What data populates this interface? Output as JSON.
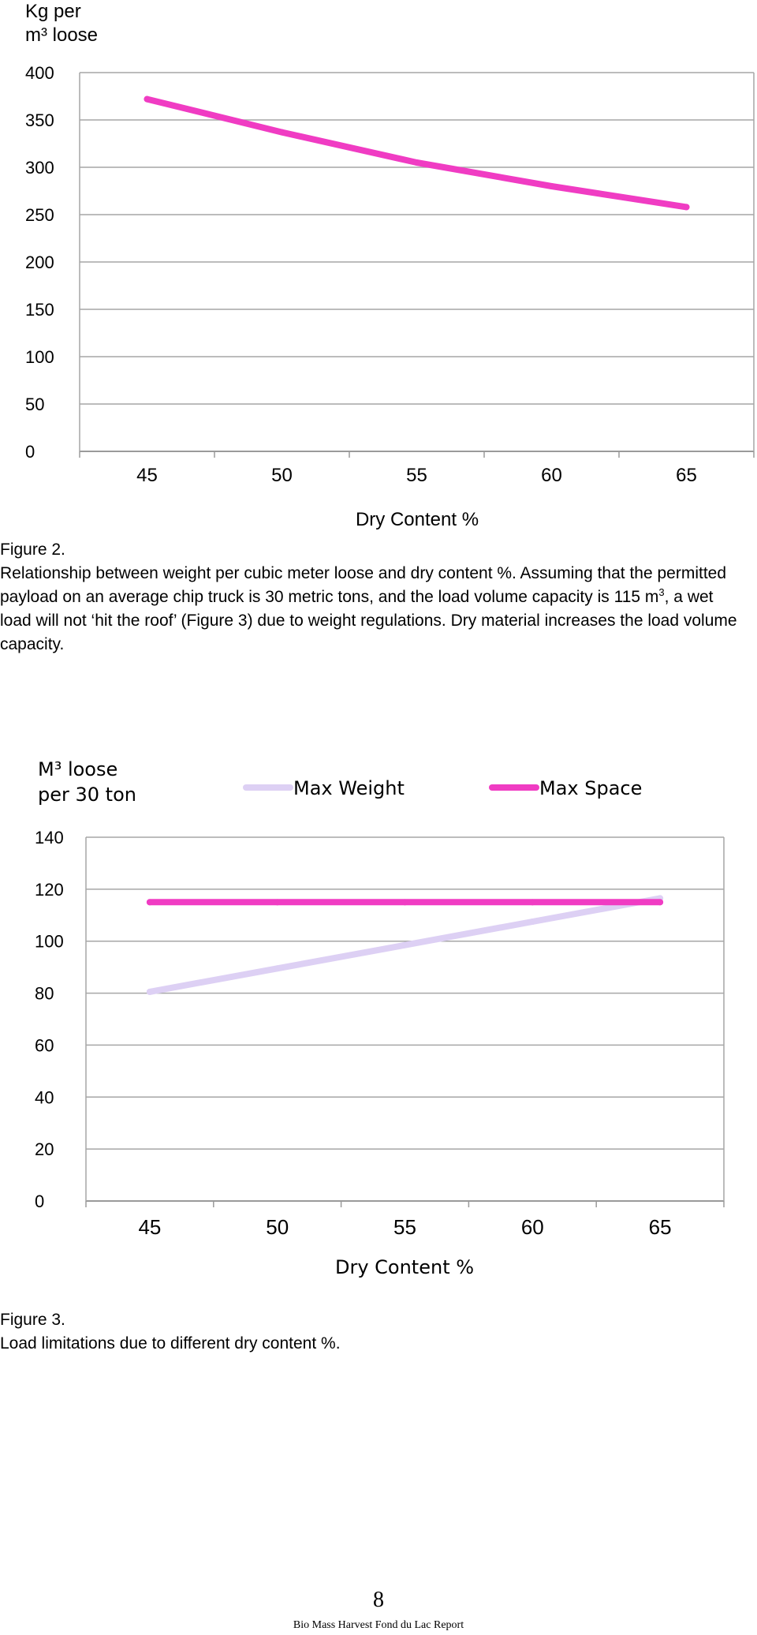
{
  "chart_data": [
    {
      "type": "line",
      "ylabel_lines": [
        "Kg per",
        "m³ loose"
      ],
      "xlabel": "Dry Content %",
      "categories": [
        "45",
        "50",
        "55",
        "60",
        "65"
      ],
      "yticks": [
        "0",
        "50",
        "100",
        "150",
        "200",
        "250",
        "300",
        "350",
        "400"
      ],
      "ylim": [
        0,
        400
      ],
      "grid": true,
      "legend": "none",
      "series": [
        {
          "values": [
            372,
            337,
            305,
            280,
            258
          ],
          "color": "#f03cc3"
        }
      ]
    },
    {
      "type": "line",
      "ylabel_lines": [
        "M³ loose",
        "per 30 ton"
      ],
      "xlabel": "Dry Content %",
      "categories": [
        "45",
        "50",
        "55",
        "60",
        "65"
      ],
      "yticks": [
        "0",
        "20",
        "40",
        "60",
        "80",
        "100",
        "120",
        "140"
      ],
      "ylim": [
        0,
        140
      ],
      "grid": true,
      "legend": "top",
      "series": [
        {
          "name": "Max Weight",
          "values": [
            80.5,
            89.5,
            98.5,
            107.5,
            116.5
          ],
          "color": "#ddd0f4"
        },
        {
          "name": "Max Space",
          "values": [
            115,
            115,
            115,
            115,
            115
          ],
          "color": "#f03cc3"
        }
      ]
    }
  ],
  "captions": {
    "fig2_label": "Figure 2.",
    "fig2_text_a": "Relationship between weight per cubic meter loose and dry content %. Assuming that the permitted payload on an average chip truck is 30 metric tons, and the load volume capacity is 115 m",
    "fig2_sup": "3",
    "fig2_text_b": ", a wet load will not ‘hit the roof’ (Figure 3) due to weight regulations. Dry material increases the load volume capacity.",
    "fig3_label": "Figure 3.",
    "fig3_text": "Load limitations due to different dry content %."
  },
  "footer": {
    "page_number": "8",
    "report_name": "Bio Mass Harvest Fond du Lac Report"
  }
}
